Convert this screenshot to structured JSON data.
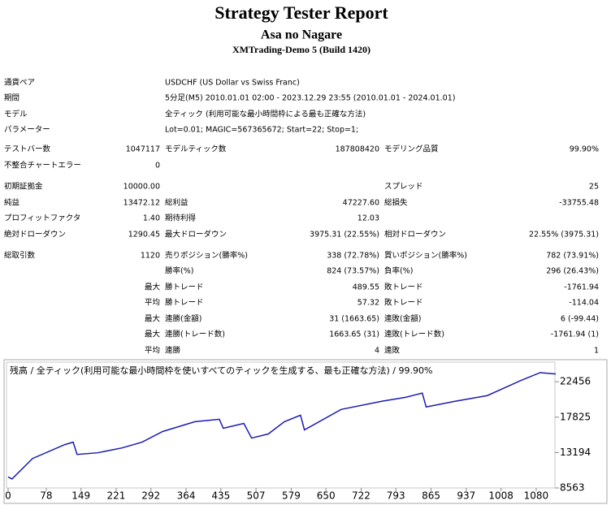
{
  "header": {
    "title": "Strategy Tester Report",
    "subtitle": "Asa no Nagare",
    "broker": "XMTrading-Demo 5 (Build 1420)"
  },
  "table": {
    "rows": [
      [
        "通貨ペア",
        "USDCHF (US Dollar vs Swiss Franc)"
      ],
      [
        "期間",
        "5分足(M5) 2010.01.01 02:00 - 2023.12.29 23:55 (2010.01.01 - 2024.01.01)"
      ],
      [
        "モデル",
        "全ティック (利用可能な最小時間枠による最も正確な方法)"
      ],
      [
        "パラメーター",
        "Lot=0.01; MAGIC=567365672; Start=22; Stop=1;"
      ],
      [
        "テストバー数",
        "1047117",
        "モデルティック数",
        "187808420",
        "モデリング品質",
        "99.90%"
      ],
      [
        "不整合チャートエラー",
        "0",
        null,
        null,
        null,
        null
      ],
      [
        "初期証拠金",
        "10000.00",
        null,
        null,
        "スプレッド",
        "25"
      ],
      [
        "純益",
        "13472.12",
        "総利益",
        "47227.60",
        "総損失",
        "-33755.48"
      ],
      [
        "プロフィットファクタ",
        "1.40",
        "期待利得",
        "12.03",
        null,
        null
      ],
      [
        "絶対ドローダウン",
        "1290.45",
        "最大ドローダウン",
        "3975.31 (22.55%)",
        "相対ドローダウン",
        "22.55% (3975.31)"
      ],
      [
        "総取引数",
        "1120",
        "売りポジション(勝率%)",
        "338 (72.78%)",
        "買いポジション(勝率%)",
        "782 (73.91%)"
      ],
      [
        null,
        null,
        "勝率(%)",
        "824 (73.57%)",
        "負率(%)",
        "296 (26.43%)"
      ],
      [
        null,
        "最大",
        "勝トレード",
        "489.55",
        "敗トレード",
        "-1761.94"
      ],
      [
        null,
        "平均",
        "勝トレード",
        "57.32",
        "敗トレード",
        "-114.04"
      ],
      [
        null,
        "最大",
        "連勝(金額)",
        "31 (1663.65)",
        "連敗(金額)",
        "6 (-99.44)"
      ],
      [
        null,
        "最大",
        "連勝(トレード数)",
        "1663.65 (31)",
        "連敗(トレード数)",
        "-1761.94 (1)"
      ],
      [
        null,
        "平均",
        "連勝",
        "4",
        "連敗",
        "1"
      ]
    ]
  },
  "chart_data": {
    "type": "line",
    "title": "残高 / 全ティック(利用可能な最小時間枠を使いすべてのティックを生成する、最も正確な方法) / 99.90%",
    "x": [
      0,
      8,
      50,
      116,
      133,
      141,
      183,
      233,
      274,
      316,
      382,
      432,
      440,
      482,
      498,
      532,
      565,
      598,
      606,
      681,
      764,
      814,
      847,
      855,
      914,
      980,
      1047,
      1088,
      1120
    ],
    "series": [
      {
        "name": "残高",
        "color": "#1c1cb0",
        "values": [
          10000,
          9740,
          12415,
          14234,
          14555,
          12950,
          13164,
          13800,
          14555,
          15946,
          17230,
          17550,
          16370,
          17010,
          15090,
          15625,
          17230,
          18085,
          16160,
          18835,
          19905,
          20440,
          20975,
          19160,
          19905,
          20650,
          22580,
          23650,
          23472
        ]
      }
    ],
    "xlim": [
      0,
      1120
    ],
    "xticks": [
      0,
      78,
      149,
      221,
      292,
      364,
      435,
      507,
      579,
      650,
      722,
      793,
      865,
      937,
      1008,
      1080
    ],
    "ylim": [
      8563,
      25030
    ],
    "yticks": [
      8563,
      13194,
      17825,
      22456
    ]
  }
}
